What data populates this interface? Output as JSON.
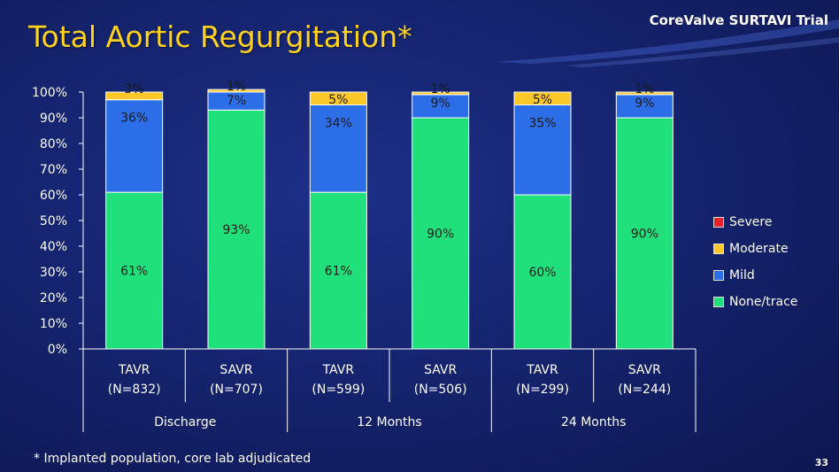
{
  "header": {
    "title": "Total Aortic Regurgitation*",
    "brand": "CoreValve SURTAVI Trial"
  },
  "footer": {
    "footnote": "* Implanted population, core lab adjudicated",
    "page_number": "33"
  },
  "colors": {
    "none_trace": "#1fe07a",
    "mild": "#2b6ee8",
    "moderate": "#ffc828",
    "severe": "#e8202a",
    "axis_text": "#ffffff",
    "bar_border": "#ffffff"
  },
  "chart_data": {
    "type": "bar",
    "stacked": true,
    "title": "Total Aortic Regurgitation*",
    "ylim": [
      0,
      100
    ],
    "yticks": [
      "0%",
      "10%",
      "20%",
      "30%",
      "40%",
      "50%",
      "60%",
      "70%",
      "80%",
      "90%",
      "100%"
    ],
    "grid": false,
    "legend_position": "right",
    "categories": [
      {
        "label": "TAVR",
        "n": "(N=832)",
        "group": "Discharge"
      },
      {
        "label": "SAVR",
        "n": "(N=707)",
        "group": "Discharge"
      },
      {
        "label": "TAVR",
        "n": "(N=599)",
        "group": "12 Months"
      },
      {
        "label": "SAVR",
        "n": "(N=506)",
        "group": "12 Months"
      },
      {
        "label": "TAVR",
        "n": "(N=299)",
        "group": "24 Months"
      },
      {
        "label": "SAVR",
        "n": "(N=244)",
        "group": "24 Months"
      }
    ],
    "groups": [
      "Discharge",
      "12 Months",
      "24 Months"
    ],
    "series": [
      {
        "name": "None/trace",
        "values": [
          61,
          93,
          61,
          90,
          60,
          90
        ],
        "labels": [
          "61%",
          "93%",
          "61%",
          "90%",
          "60%",
          "90%"
        ]
      },
      {
        "name": "Mild",
        "values": [
          36,
          7,
          34,
          9,
          35,
          9
        ],
        "labels": [
          "36%",
          "7%",
          "34%",
          "9%",
          "35%",
          "9%"
        ]
      },
      {
        "name": "Moderate",
        "values": [
          3,
          1,
          5,
          1,
          5,
          1
        ],
        "labels": [
          "3%",
          "1%",
          "5%",
          "1%",
          "5%",
          "1%"
        ]
      },
      {
        "name": "Severe",
        "values": [
          0,
          0,
          0,
          0,
          0,
          0
        ],
        "labels": [
          "",
          "",
          "",
          "",
          "",
          ""
        ]
      }
    ],
    "legend_order": [
      "Severe",
      "Moderate",
      "Mild",
      "None/trace"
    ]
  }
}
